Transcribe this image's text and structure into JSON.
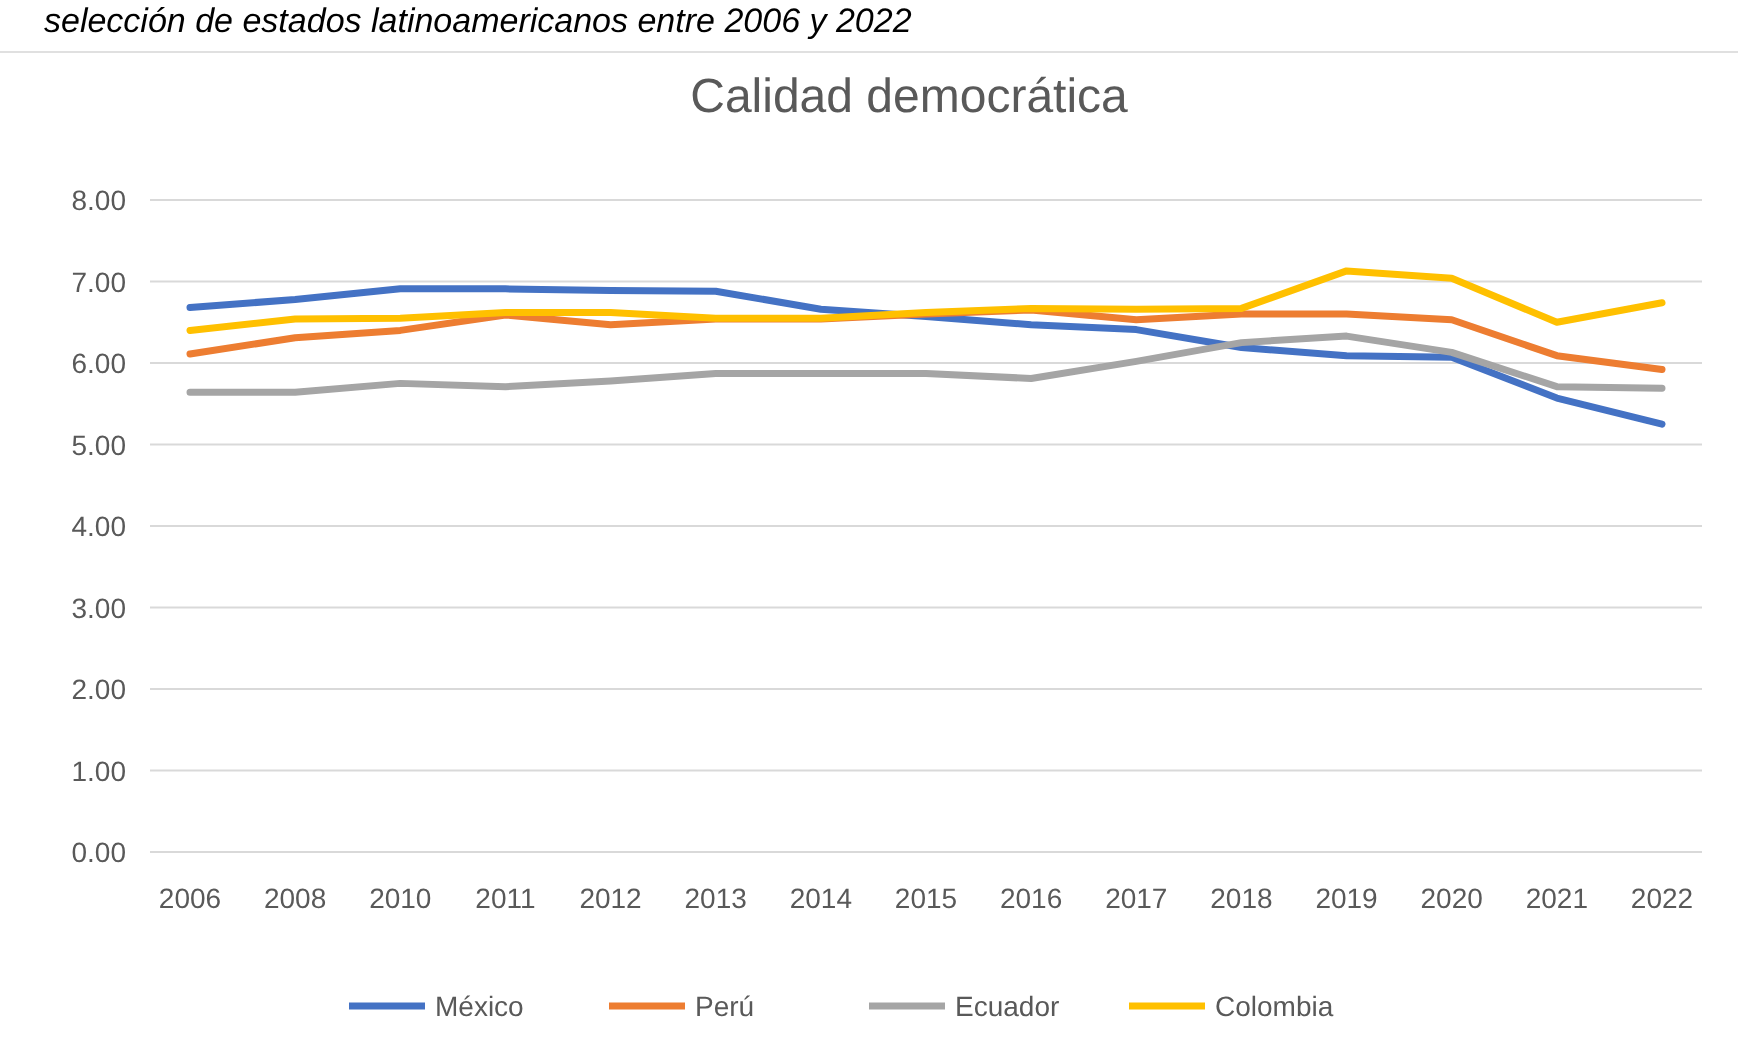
{
  "chart_data": {
    "type": "line",
    "title": "Calidad democrática",
    "annotations": [
      "selección de estados latinoamericanos entre 2006 y 2022"
    ],
    "categories": [
      "2006",
      "2008",
      "2010",
      "2011",
      "2012",
      "2013",
      "2014",
      "2015",
      "2016",
      "2017",
      "2018",
      "2019",
      "2020",
      "2021",
      "2022"
    ],
    "series": [
      {
        "name": "México",
        "color": "#4472c4",
        "values": [
          6.68,
          6.78,
          6.91,
          6.91,
          6.89,
          6.88,
          6.66,
          6.57,
          6.47,
          6.41,
          6.19,
          6.09,
          6.07,
          5.57,
          5.25
        ]
      },
      {
        "name": "Perú",
        "color": "#ed7d31",
        "values": [
          6.11,
          6.31,
          6.4,
          6.59,
          6.47,
          6.54,
          6.54,
          6.6,
          6.65,
          6.53,
          6.6,
          6.6,
          6.53,
          6.09,
          5.92
        ]
      },
      {
        "name": "Ecuador",
        "color": "#a5a5a5",
        "values": [
          5.64,
          5.64,
          5.75,
          5.71,
          5.78,
          5.87,
          5.87,
          5.87,
          5.81,
          6.02,
          6.25,
          6.33,
          6.13,
          5.71,
          5.69
        ]
      },
      {
        "name": "Colombia",
        "color": "#ffc000",
        "values": [
          6.4,
          6.54,
          6.55,
          6.62,
          6.62,
          6.55,
          6.55,
          6.62,
          6.67,
          6.66,
          6.67,
          7.13,
          7.04,
          6.5,
          6.74
        ]
      }
    ],
    "ylim": [
      0,
      8
    ],
    "yticks": [
      {
        "value": 0,
        "label": "0.00"
      },
      {
        "value": 1,
        "label": "1.00"
      },
      {
        "value": 2,
        "label": "2.00"
      },
      {
        "value": 3,
        "label": "3.00"
      },
      {
        "value": 4,
        "label": "4.00"
      },
      {
        "value": 5,
        "label": "5.00"
      },
      {
        "value": 6,
        "label": "6.00"
      },
      {
        "value": 7,
        "label": "7.00"
      },
      {
        "value": 8,
        "label": "8.00"
      }
    ],
    "grid": "y",
    "legend": "bottom",
    "line_style": "solid"
  }
}
